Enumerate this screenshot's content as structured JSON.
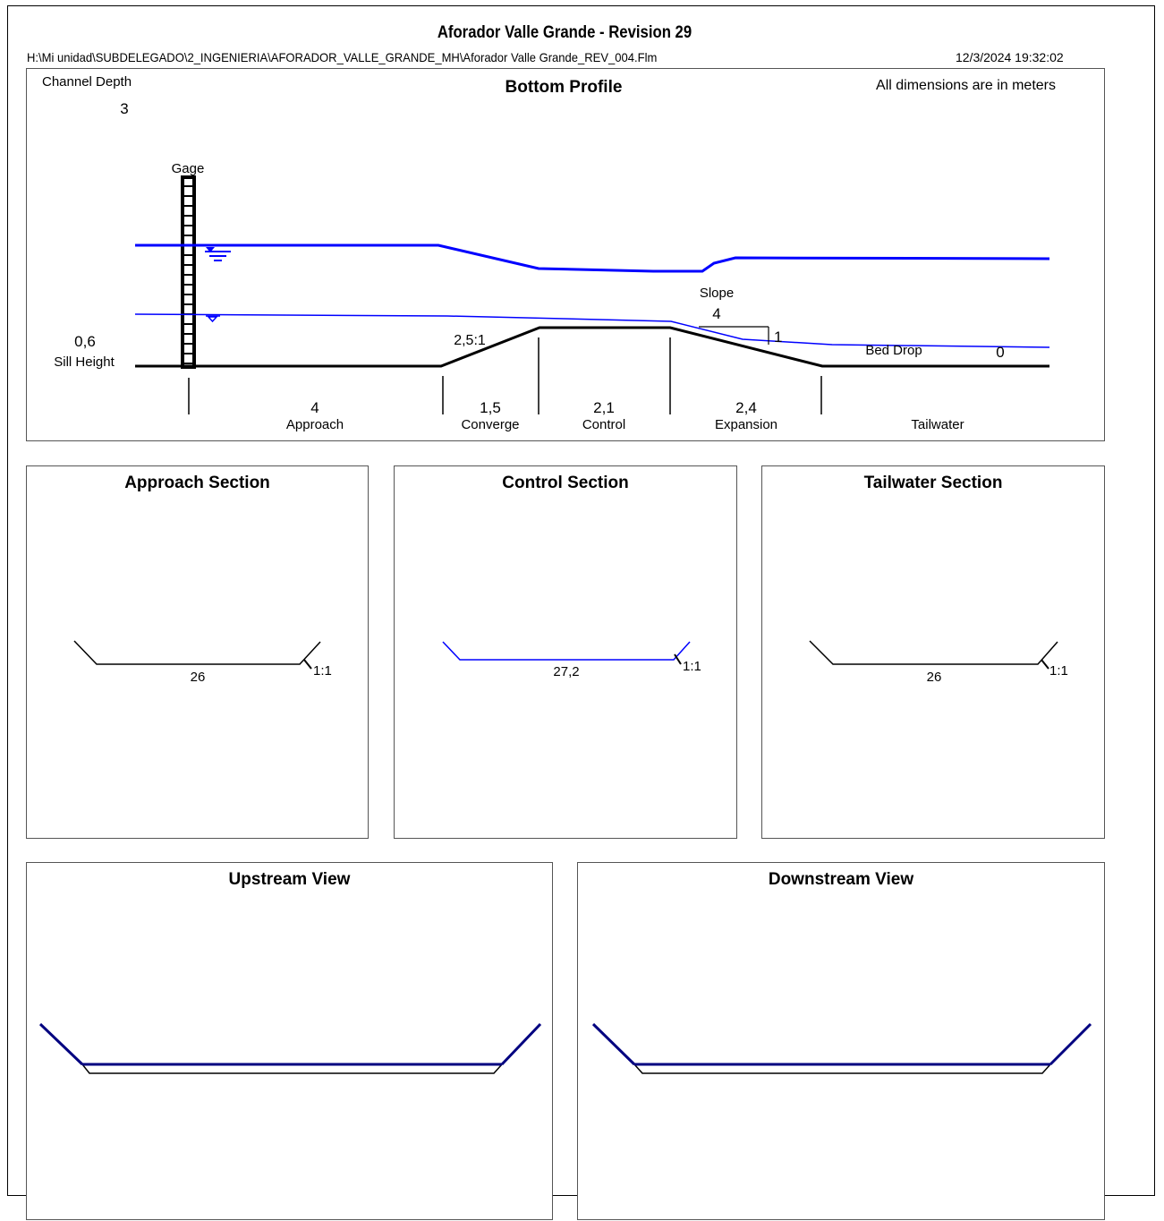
{
  "header": {
    "title": "Aforador Valle Grande - Revision 29",
    "file_path": "H:\\Mi unidad\\SUBDELEGADO\\2_INGENIERIA\\AFORADOR_VALLE_GRANDE_MH\\Aforador Valle Grande_REV_004.Flm",
    "timestamp": "12/3/2024 19:32:02"
  },
  "profile": {
    "title": "Bottom Profile",
    "units_note": "All dimensions are in meters",
    "channel_depth_label": "Channel Depth",
    "channel_depth_value": "3",
    "gage_label": "Gage",
    "sill_height_value": "0,6",
    "sill_height_label": "Sill Height",
    "converge_ratio": "2,5:1",
    "slope_label": "Slope",
    "slope_run": "4",
    "slope_rise": "1",
    "bed_drop_label": "Bed Drop",
    "bed_drop_value": "0",
    "segments": [
      {
        "label": "Approach",
        "value": "4"
      },
      {
        "label": "Converge",
        "value": "1,5"
      },
      {
        "label": "Control",
        "value": "2,1"
      },
      {
        "label": "Expansion",
        "value": "2,4"
      },
      {
        "label": "Tailwater",
        "value": ""
      }
    ]
  },
  "sections": {
    "approach": {
      "title": "Approach Section",
      "width": "26",
      "side_slope": "1:1"
    },
    "control": {
      "title": "Control Section",
      "width": "27,2",
      "side_slope": "1:1"
    },
    "tailwater": {
      "title": "Tailwater Section",
      "width": "26",
      "side_slope": "1:1"
    }
  },
  "views": {
    "upstream": {
      "title": "Upstream View"
    },
    "downstream": {
      "title": "Downstream View"
    }
  },
  "colors": {
    "water": "#0000ff",
    "bed": "#000000",
    "view_water": "#000080"
  }
}
